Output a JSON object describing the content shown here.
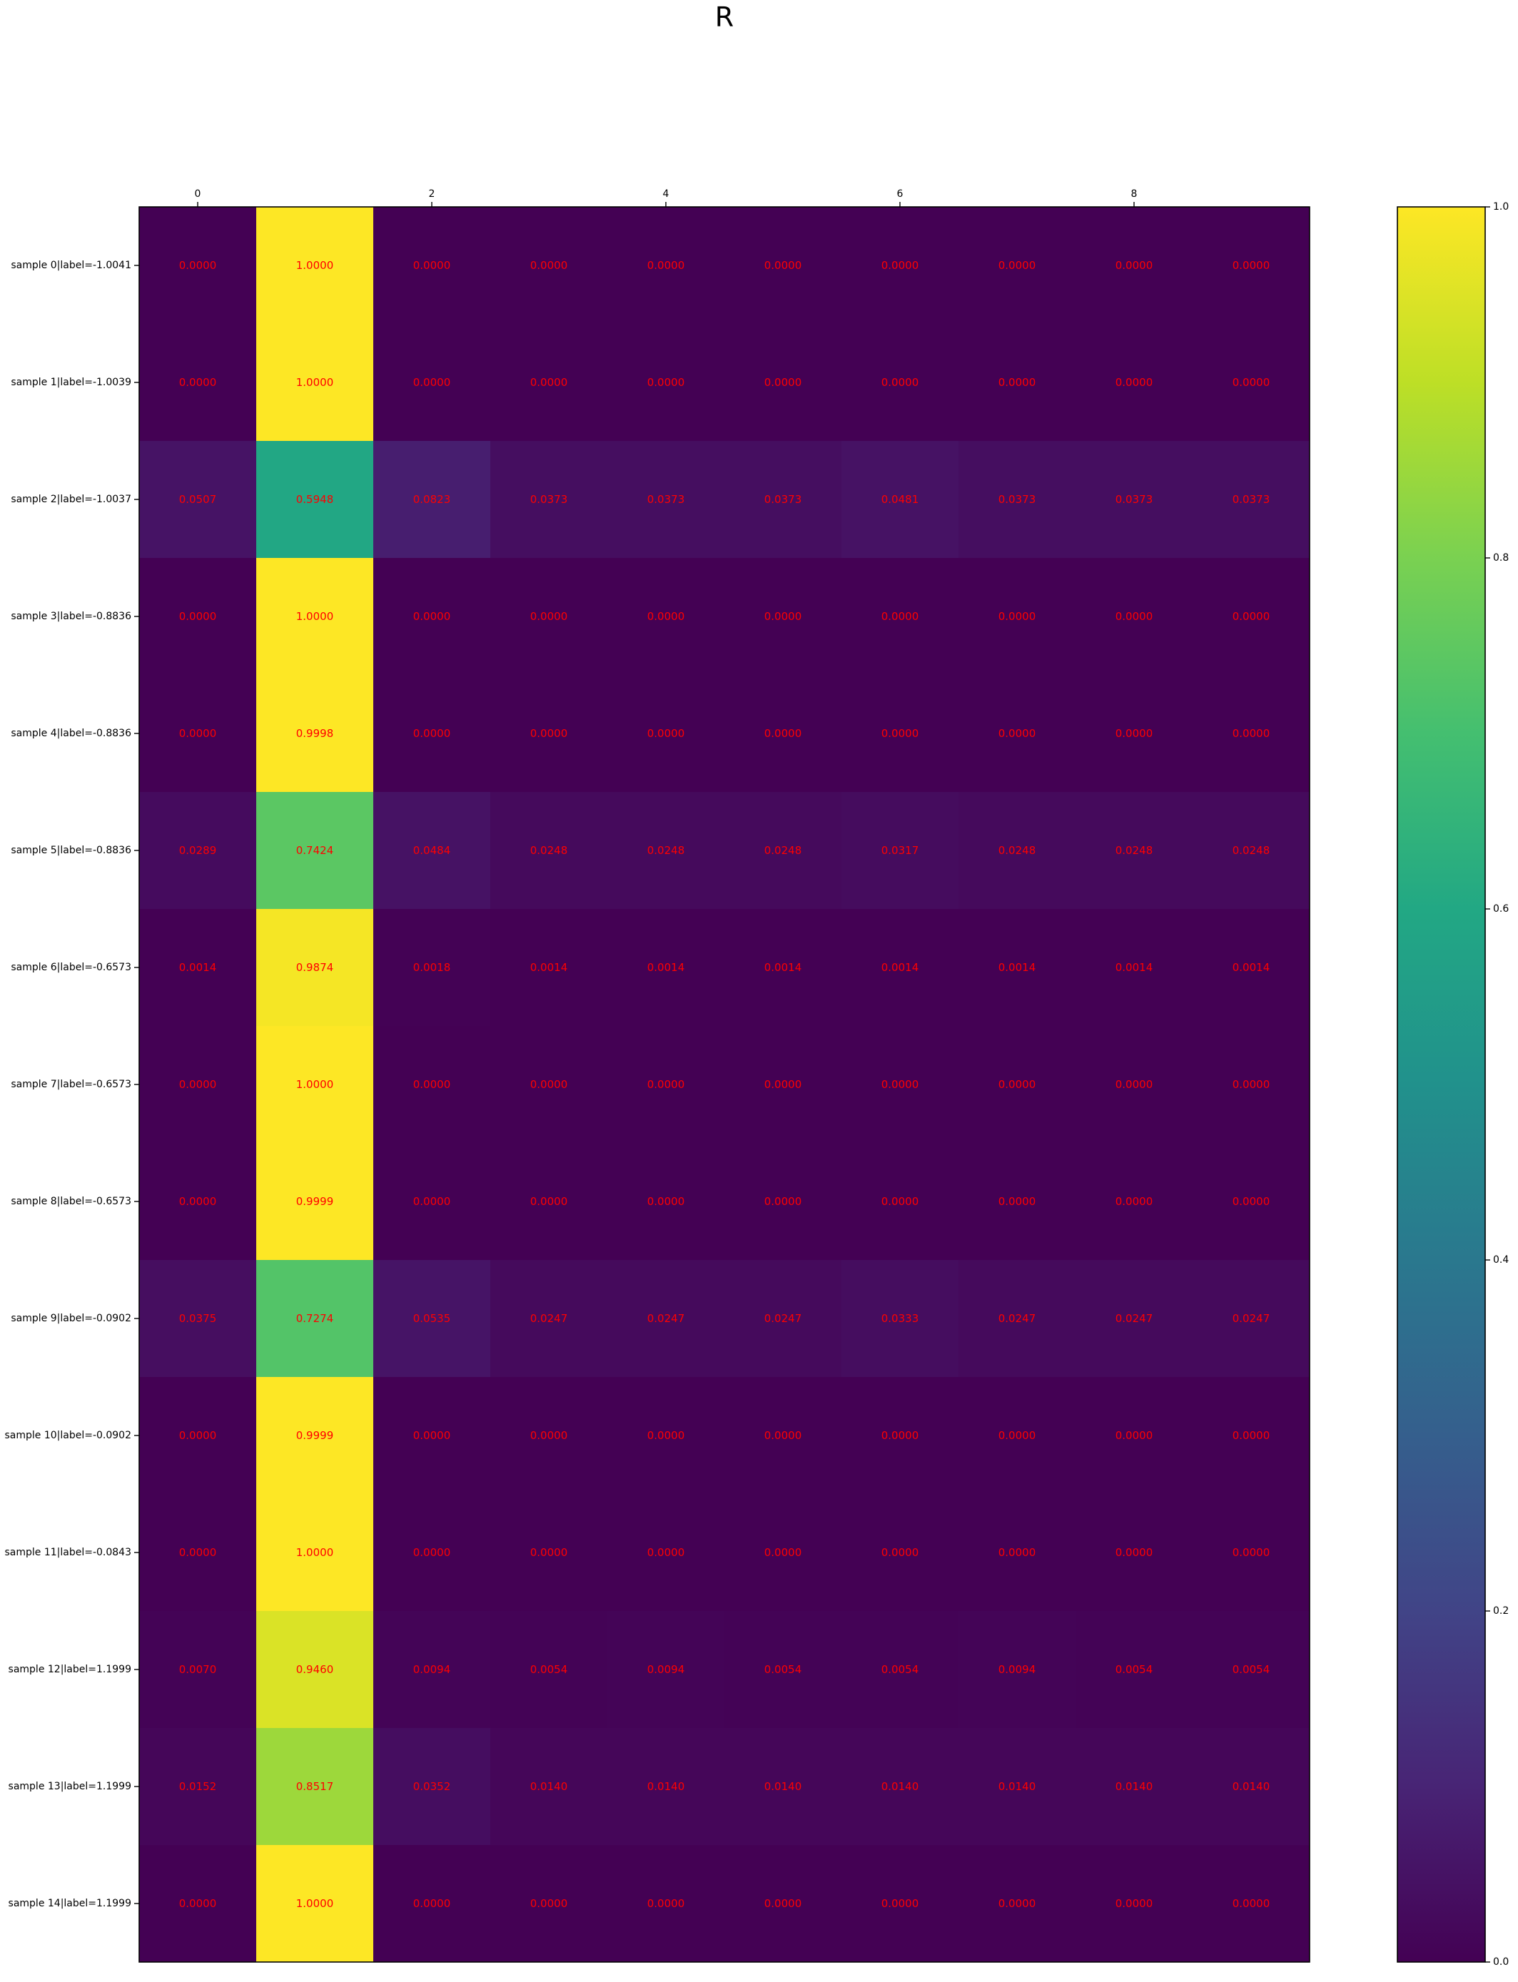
{
  "chart_data": {
    "type": "heatmap",
    "title": "R",
    "xlabel": "",
    "ylabel": "",
    "x_tick_labels": [
      "0",
      "2",
      "4",
      "6",
      "8"
    ],
    "x_tick_values": [
      0,
      2,
      4,
      6,
      8
    ],
    "columns": 10,
    "row_labels": [
      "sample 0|label=-1.0041",
      "sample 1|label=-1.0039",
      "sample 2|label=-1.0037",
      "sample 3|label=-0.8836",
      "sample 4|label=-0.8836",
      "sample 5|label=-0.8836",
      "sample 6|label=-0.6573",
      "sample 7|label=-0.6573",
      "sample 8|label=-0.6573",
      "sample 9|label=-0.0902",
      "sample 10|label=-0.0902",
      "sample 11|label=-0.0843",
      "sample 12|label=1.1999",
      "sample 13|label=1.1999",
      "sample 14|label=1.1999"
    ],
    "values": [
      [
        0.0,
        1.0,
        0.0,
        0.0,
        0.0,
        0.0,
        0.0,
        0.0,
        0.0,
        0.0
      ],
      [
        0.0,
        1.0,
        0.0,
        0.0,
        0.0,
        0.0,
        0.0,
        0.0,
        0.0,
        0.0
      ],
      [
        0.0507,
        0.5948,
        0.0823,
        0.0373,
        0.0373,
        0.0373,
        0.0481,
        0.0373,
        0.0373,
        0.0373
      ],
      [
        0.0,
        1.0,
        0.0,
        0.0,
        0.0,
        0.0,
        0.0,
        0.0,
        0.0,
        0.0
      ],
      [
        0.0,
        0.9998,
        0.0,
        0.0,
        0.0,
        0.0,
        0.0,
        0.0,
        0.0,
        0.0
      ],
      [
        0.0289,
        0.7424,
        0.0484,
        0.0248,
        0.0248,
        0.0248,
        0.0317,
        0.0248,
        0.0248,
        0.0248
      ],
      [
        0.0014,
        0.9874,
        0.0018,
        0.0014,
        0.0014,
        0.0014,
        0.0014,
        0.0014,
        0.0014,
        0.0014
      ],
      [
        0.0,
        1.0,
        0.0,
        0.0,
        0.0,
        0.0,
        0.0,
        0.0,
        0.0,
        0.0
      ],
      [
        0.0,
        0.9999,
        0.0,
        0.0,
        0.0,
        0.0,
        0.0,
        0.0,
        0.0,
        0.0
      ],
      [
        0.0375,
        0.7274,
        0.0535,
        0.0247,
        0.0247,
        0.0247,
        0.0333,
        0.0247,
        0.0247,
        0.0247
      ],
      [
        0.0,
        0.9999,
        0.0,
        0.0,
        0.0,
        0.0,
        0.0,
        0.0,
        0.0,
        0.0
      ],
      [
        0.0,
        1.0,
        0.0,
        0.0,
        0.0,
        0.0,
        0.0,
        0.0,
        0.0,
        0.0
      ],
      [
        0.007,
        0.946,
        0.0094,
        0.0054,
        0.0094,
        0.0054,
        0.0054,
        0.0094,
        0.0054,
        0.0054
      ],
      [
        0.0152,
        0.8517,
        0.0352,
        0.014,
        0.014,
        0.014,
        0.014,
        0.014,
        0.014,
        0.014
      ],
      [
        0.0,
        1.0,
        0.0,
        0.0,
        0.0,
        0.0,
        0.0,
        0.0,
        0.0,
        0.0
      ]
    ],
    "colormap": "viridis",
    "annotation_color": "#ff0000",
    "vmin": 0.0,
    "vmax": 1.0,
    "colorbar_tick_labels": [
      "0.0",
      "0.2",
      "0.4",
      "0.6",
      "0.8",
      "1.0"
    ],
    "colorbar_tick_values": [
      0.0,
      0.2,
      0.4,
      0.6,
      0.8,
      1.0
    ],
    "grid": false,
    "legend": "colorbar-right"
  }
}
